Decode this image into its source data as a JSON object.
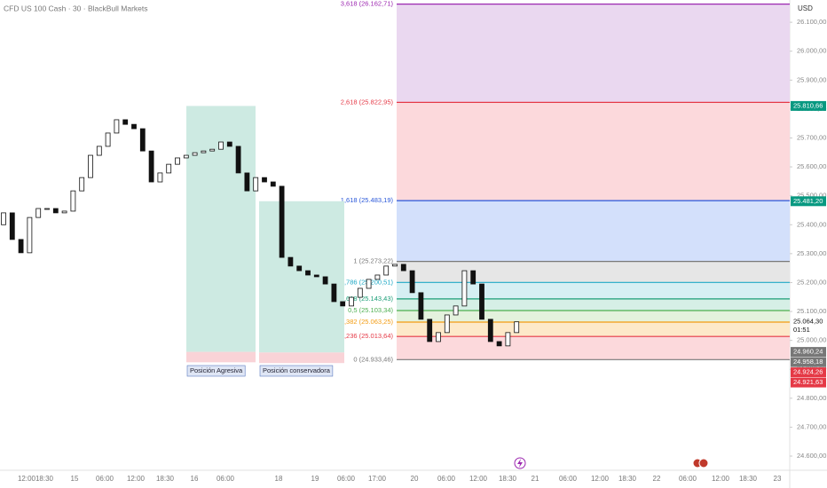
{
  "chart_data": {
    "type": "candlestick",
    "title": "CFD US 100 Cash · 30 · BlackBull Markets",
    "currency": "USD",
    "x_labels": [
      "12:00",
      "18:30",
      "15",
      "06:00",
      "12:00",
      "18:30",
      "16",
      "06:00",
      "18",
      "19",
      "06:00",
      "17:00",
      "20",
      "06:00",
      "12:00",
      "18:30",
      "21",
      "06:00",
      "12:00",
      "18:30",
      "22",
      "06:00",
      "12:00",
      "18:30",
      "23"
    ],
    "open": [
      25400,
      25441,
      25349,
      25303,
      25425,
      25456,
      25456,
      25441,
      25447,
      25517,
      25563,
      25640,
      25671,
      25717,
      25763,
      25747,
      25732,
      25655,
      25548,
      25579,
      25609,
      25631,
      25640,
      25649,
      25655,
      25661,
      25686,
      25671,
      25579,
      25517,
      25563,
      25548,
      25533,
      25287,
      25257,
      25241,
      25226,
      25220,
      25195,
      25134,
      25119,
      25149,
      25180,
      25211,
      25226,
      25257,
      25263,
      25241,
      25165,
      25073,
      24996,
      25027,
      25088,
      25119,
      25241,
      25195,
      25073,
      24996,
      24981,
      25027
    ],
    "close": [
      25441,
      25349,
      25303,
      25425,
      25456,
      25456,
      25441,
      25447,
      25517,
      25563,
      25640,
      25671,
      25717,
      25763,
      25747,
      25732,
      25655,
      25548,
      25579,
      25609,
      25631,
      25640,
      25649,
      25655,
      25661,
      25686,
      25671,
      25579,
      25517,
      25563,
      25548,
      25533,
      25287,
      25257,
      25241,
      25226,
      25220,
      25195,
      25134,
      25119,
      25149,
      25180,
      25211,
      25226,
      25257,
      25263,
      25241,
      25165,
      25073,
      24996,
      25027,
      25088,
      25119,
      25241,
      25195,
      25073,
      24996,
      24981,
      25027,
      25064.3
    ],
    "ylim": [
      24551,
      26177
    ],
    "yticks": [
      {
        "value": 24600,
        "label": "24.600,00"
      },
      {
        "value": 24700,
        "label": "24.700,00"
      },
      {
        "value": 24800,
        "label": "24.800,00"
      },
      {
        "value": 24900,
        "label": "24.900,00"
      },
      {
        "value": 25000,
        "label": "25.000,00"
      },
      {
        "value": 25100,
        "label": "25.100,00"
      },
      {
        "value": 25200,
        "label": "25.200,00"
      },
      {
        "value": 25300,
        "label": "25.300,00"
      },
      {
        "value": 25400,
        "label": "25.400,00"
      },
      {
        "value": 25500,
        "label": "25.500,00"
      },
      {
        "value": 25600,
        "label": "25.600,00"
      },
      {
        "value": 25700,
        "label": "25.700,00"
      },
      {
        "value": 25800,
        "label": "25.800,00"
      },
      {
        "value": 25900,
        "label": "25.900,00"
      },
      {
        "value": 26000,
        "label": "26.000,00"
      },
      {
        "value": 26100,
        "label": "26.100,00"
      }
    ],
    "fib_levels": [
      {
        "value": 26162.71,
        "label": "3,618 (26.162,71)",
        "color": "#9c27b0",
        "fill": "#ead8f0"
      },
      {
        "value": 25822.95,
        "label": "2,618 (25.822,95)",
        "color": "#e53946",
        "fill": "#fcd9dc"
      },
      {
        "value": 25483.19,
        "label": "1,618 (25.483,19)",
        "color": "#2957d9",
        "fill": "#d3e0fb"
      },
      {
        "value": 25273.22,
        "label": "1 (25.273,22)",
        "color": "#787878",
        "fill": "#e6e6e6"
      },
      {
        "value": 25200.51,
        "label": "0,786 (25.200,51)",
        "color": "#1fa9c6",
        "fill": "#d6eff3"
      },
      {
        "value": 25143.43,
        "label": "0,618 (25.143,43)",
        "color": "#1b9e77",
        "fill": "#d6efe6"
      },
      {
        "value": 25103.34,
        "label": "0,5 (25.103,34)",
        "color": "#4caf50",
        "fill": "#e4f2dd"
      },
      {
        "value": 25063.25,
        "label": "0,382 (25.063,25)",
        "color": "#f39c12",
        "fill": "#fde9c9"
      },
      {
        "value": 25013.64,
        "label": "0,236 (25.013,64)",
        "color": "#e53946",
        "fill": "#fcd9dc"
      },
      {
        "value": 24933.46,
        "label": "0 (24.933,46)",
        "color": "#787878"
      }
    ],
    "positions": [
      {
        "label": "Posición Agresiva",
        "target": {
          "value": 25810.66,
          "label": "25.810,66"
        },
        "entry": {
          "value": 24960.24,
          "label": "24.960,24"
        },
        "stop": {
          "value": 24924.26,
          "label": "24.924,26"
        }
      },
      {
        "label": "Posición conservadora",
        "target": {
          "value": 25481.2,
          "label": "25.481,20"
        },
        "entry": {
          "value": 24958.18,
          "label": "24.958,18"
        },
        "stop": {
          "value": 24921.63,
          "label": "24.921,63"
        }
      }
    ],
    "last_price": {
      "value": 25064.3,
      "label": "25.064,30"
    },
    "countdown": "01:51"
  }
}
